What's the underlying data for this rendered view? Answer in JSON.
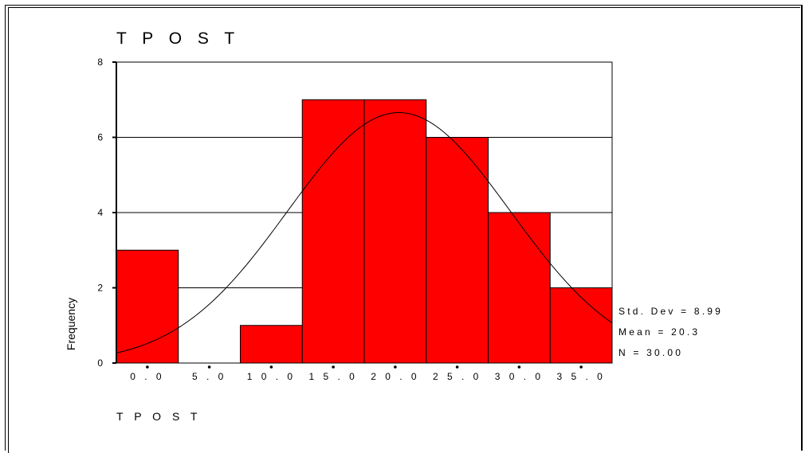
{
  "chart_data": {
    "type": "bar",
    "title": "T P O S T",
    "xlabel": "T P O S T",
    "ylabel": "Frequency",
    "categories": [
      "0 . 0",
      "5 . 0",
      "1 0 . 0",
      "1 5 . 0",
      "2 0 . 0",
      "2 5 . 0",
      "3 0 . 0",
      "3 5 . 0"
    ],
    "bin_centers": [
      0,
      5,
      10,
      15,
      20,
      25,
      30,
      35
    ],
    "values": [
      3,
      0,
      1,
      7,
      7,
      6,
      4,
      2
    ],
    "ylim": [
      0,
      8
    ],
    "yticks": [
      0,
      2,
      4,
      6,
      8
    ],
    "gridlines": [
      2,
      4,
      6,
      8
    ],
    "bar_color": "#ff0000",
    "normal_curve": {
      "mean": 20.3,
      "std_dev": 8.99,
      "n": 30,
      "bin_width": 5
    },
    "stats": [
      "Std. Dev = 8.99",
      "Mean = 20.3",
      "N = 30.00"
    ]
  }
}
